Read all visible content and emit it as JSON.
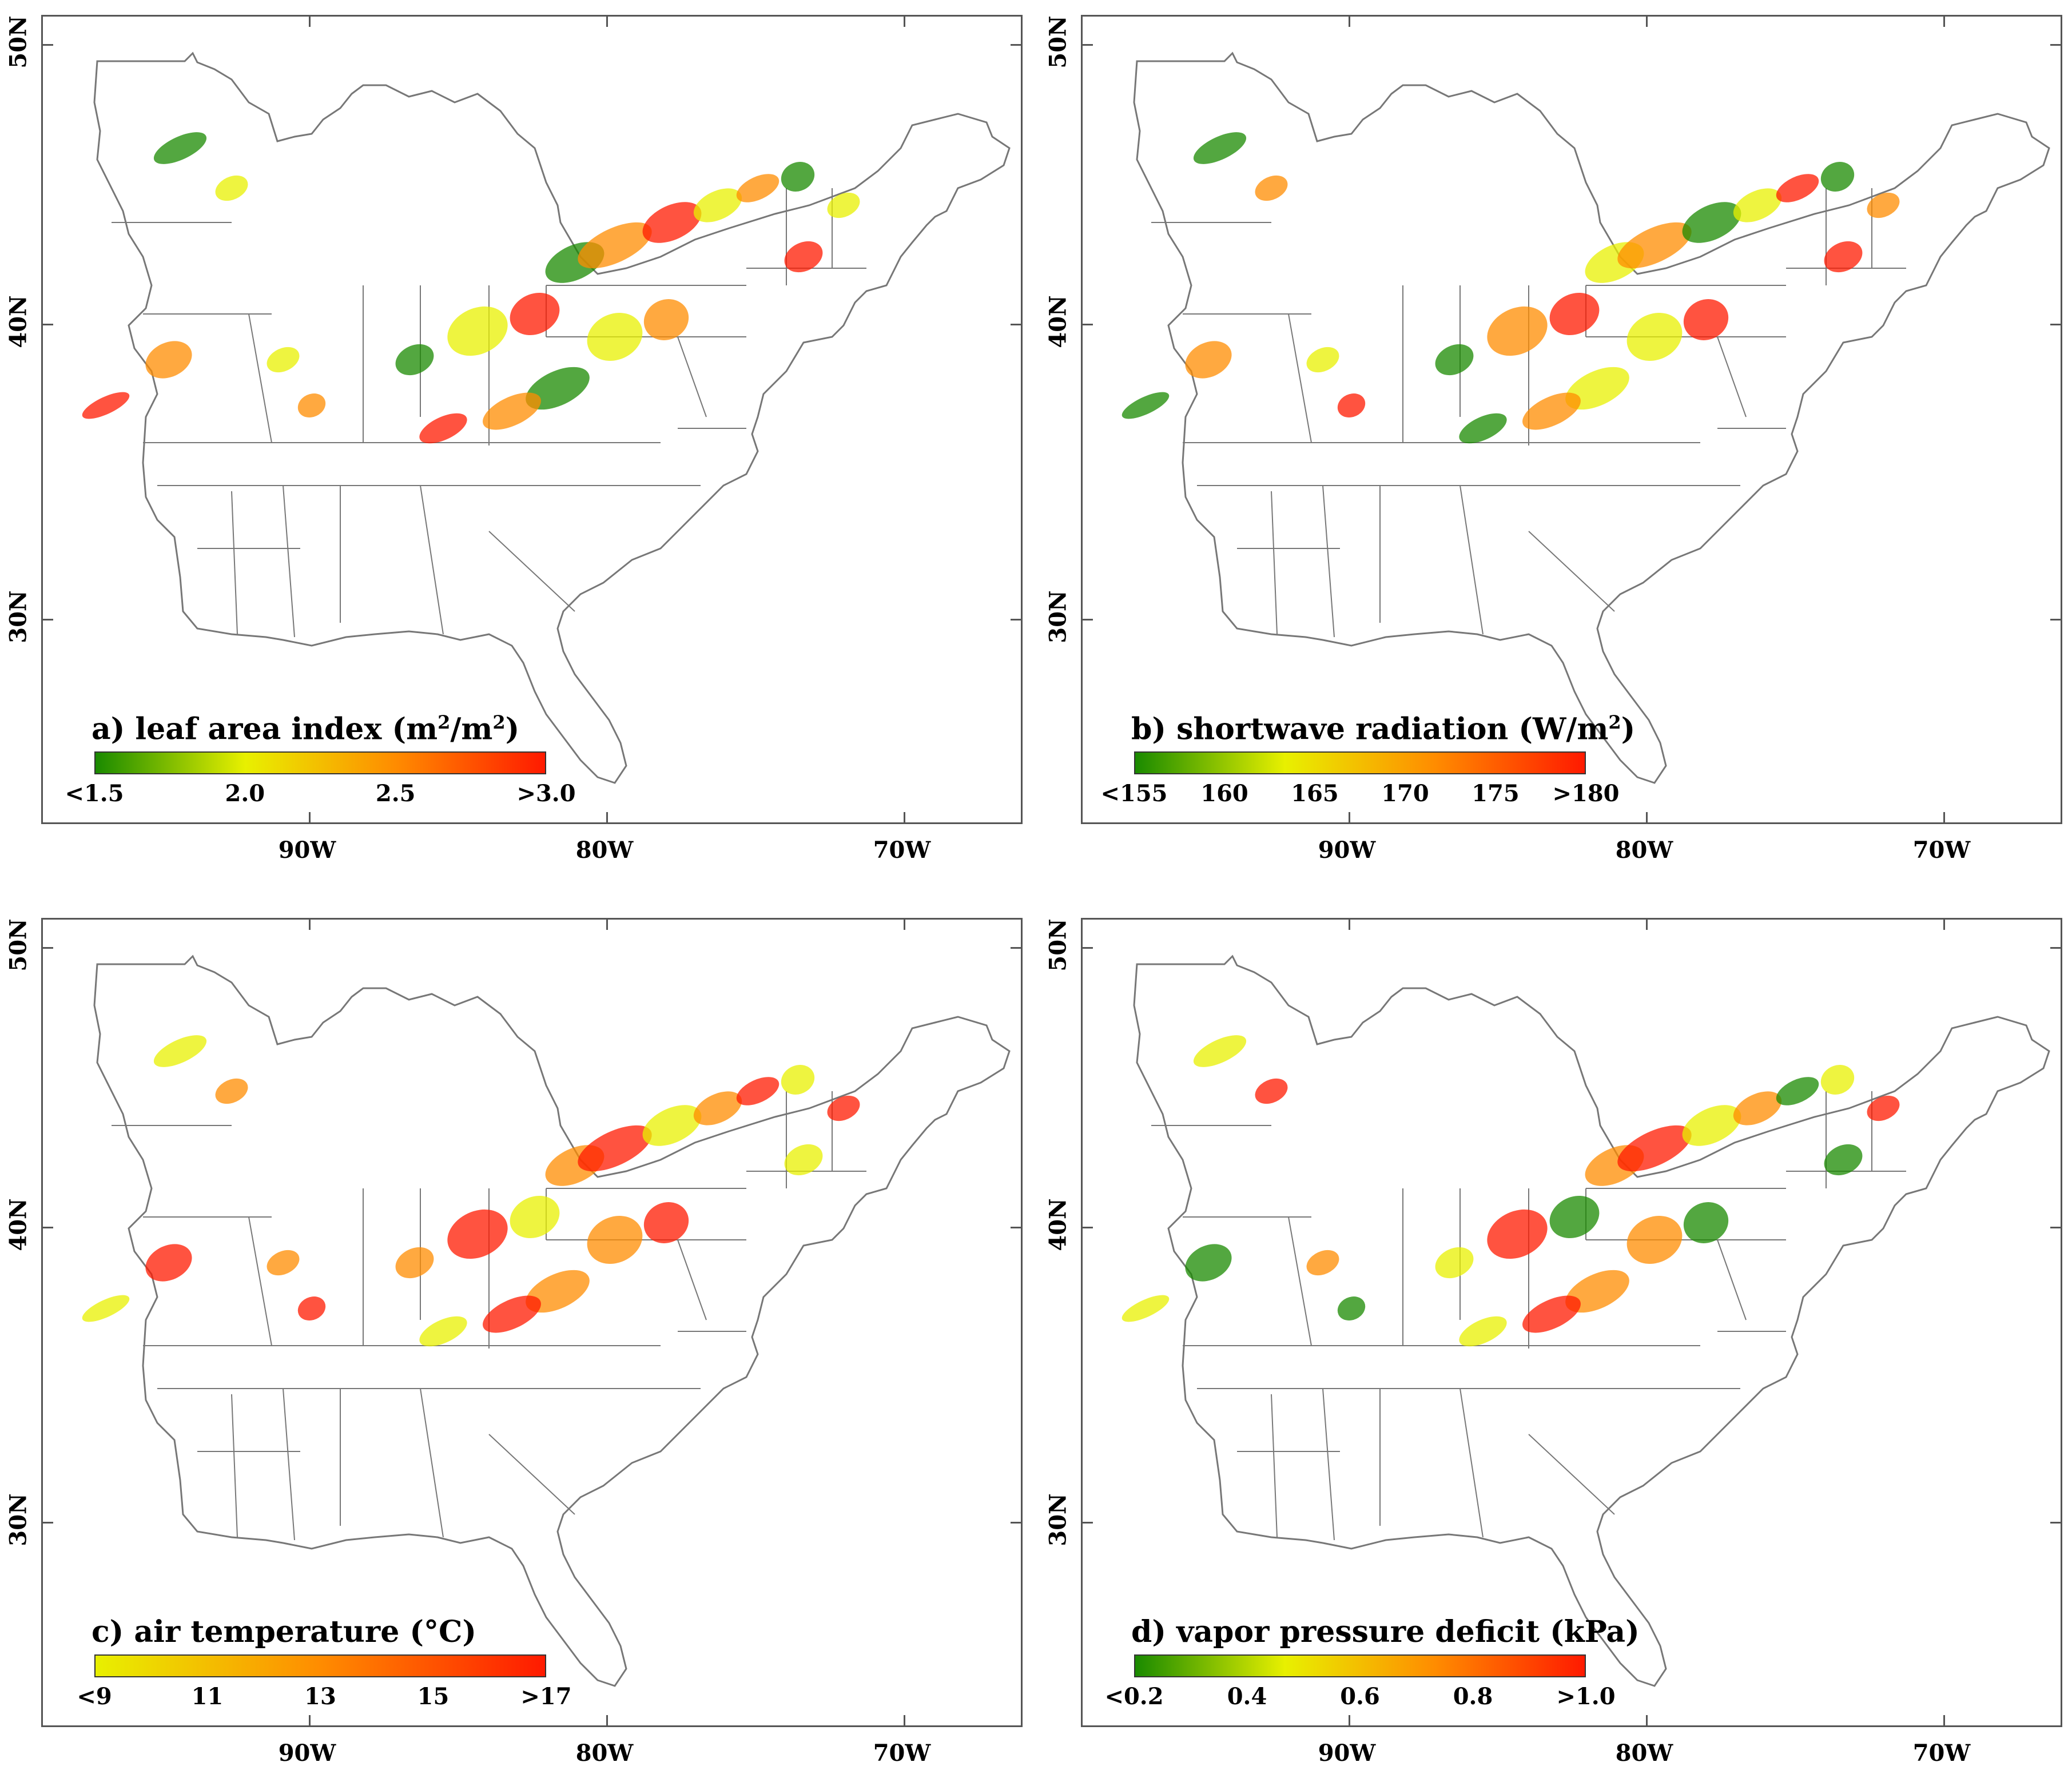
{
  "panels": [
    {
      "id": "a",
      "title_prefix": "a) leaf area index (m",
      "title_sup1": "2",
      "title_mid": "/m",
      "title_sup2": "2",
      "title_suffix": ")",
      "colorbar": {
        "colors": [
          "#1a8a00",
          "#e8f000",
          "#ff8c00",
          "#ff1a00"
        ],
        "labels": [
          "<1.5",
          "2.0",
          "2.5",
          ">3.0"
        ],
        "range": [
          1.5,
          3.0
        ]
      }
    },
    {
      "id": "b",
      "title_prefix": "b) shortwave radiation (W/m",
      "title_sup1": "2",
      "title_mid": "",
      "title_sup2": "",
      "title_suffix": ")",
      "colorbar": {
        "colors": [
          "#1a8a00",
          "#e8f000",
          "#ff8c00",
          "#ff1a00"
        ],
        "labels": [
          "<155",
          "160",
          "165",
          "170",
          "175",
          ">180"
        ],
        "range": [
          155,
          180
        ]
      }
    },
    {
      "id": "c",
      "title_prefix": "c) air temperature (°C)",
      "title_sup1": "",
      "title_mid": "",
      "title_sup2": "",
      "title_suffix": "",
      "colorbar": {
        "colors": [
          "#e8f000",
          "#ff8c00",
          "#ff1a00"
        ],
        "labels": [
          "<9",
          "11",
          "13",
          "15",
          ">17"
        ],
        "range": [
          9,
          17
        ]
      }
    },
    {
      "id": "d",
      "title_prefix": "d) vapor pressure deficit (kPa)",
      "title_sup1": "",
      "title_mid": "",
      "title_sup2": "",
      "title_suffix": "",
      "colorbar": {
        "colors": [
          "#1a8a00",
          "#e8f000",
          "#ff8c00",
          "#ff1a00"
        ],
        "labels": [
          "<0.2",
          "0.4",
          "0.6",
          "0.8",
          ">1.0"
        ],
        "range": [
          0.2,
          1.0
        ]
      }
    }
  ],
  "axes": {
    "lat_labels": [
      "50N",
      "40N",
      "30N"
    ],
    "lon_labels": [
      "90W",
      "80W",
      "70W"
    ]
  },
  "colors": {
    "frame": "#555555",
    "state_lines": "#777777"
  }
}
